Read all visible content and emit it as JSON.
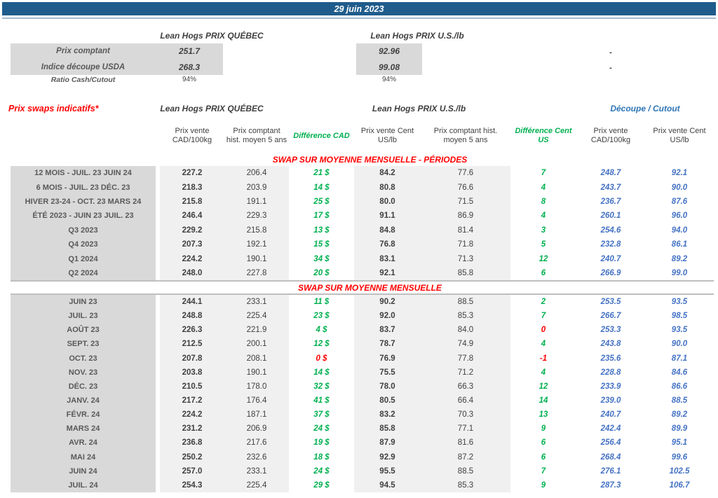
{
  "title_bar": {
    "date": "29 juin 2023"
  },
  "summary": {
    "quebec_header": "Lean Hogs PRIX QUÉBEC",
    "us_header": "Lean Hogs PRIX U.S./lb",
    "rows": [
      {
        "label": "Prix comptant",
        "quebec": "251.7",
        "us": "92.96",
        "right": "-"
      },
      {
        "label": "Indice découpe USDA",
        "quebec": "268.3",
        "us": "99.08",
        "right": "-"
      }
    ],
    "ratio": {
      "label": "Ratio Cash/Cutout",
      "quebec": "94%",
      "us": "94%"
    }
  },
  "swaps": {
    "title": "Prix swaps indicatifs*",
    "quebec_header": "Lean Hogs PRIX QUÉBEC",
    "us_header": "Lean Hogs PRIX U.S./lb",
    "cutout_header": "Découpe / Cutout"
  },
  "swap_table": {
    "columns": [
      "Prix vente CAD/100kg",
      "Prix comptant hist. moyen 5 ans",
      "Différence CAD",
      "Prix vente Cent US/lb",
      "Prix comptant hist. moyen 5 ans",
      "Différence Cent US",
      "Prix vente CAD/100kg",
      "Prix vente Cent US/lb"
    ],
    "sections": [
      {
        "title": "SWAP SUR MOYENNE MENSUELLE - PÉRIODES",
        "rows": [
          {
            "cells": [
              "12 MOIS - JUIL. 23 JUIN 24",
              "227.2",
              "206.4",
              "21 $",
              "84.2",
              "77.6",
              "7",
              "248.7",
              "92.1"
            ],
            "red": []
          },
          {
            "cells": [
              "6 MOIS - JUIL. 23 DÉC. 23",
              "218.3",
              "203.9",
              "14 $",
              "80.8",
              "76.6",
              "4",
              "243.7",
              "90.0"
            ],
            "red": []
          },
          {
            "cells": [
              "HIVER 23-24 -  OCT. 23 MARS 24",
              "215.8",
              "191.1",
              "25 $",
              "80.0",
              "71.5",
              "8",
              "236.7",
              "87.6"
            ],
            "red": []
          },
          {
            "cells": [
              "ÉTÉ 2023 - JUIN 23 JUIL. 23",
              "246.4",
              "229.3",
              "17 $",
              "91.1",
              "86.9",
              "4",
              "260.1",
              "96.0"
            ],
            "red": []
          },
          {
            "cells": [
              "Q3 2023",
              "229.2",
              "215.8",
              "13 $",
              "84.8",
              "81.4",
              "3",
              "254.6",
              "94.0"
            ],
            "red": []
          },
          {
            "cells": [
              "Q4 2023",
              "207.3",
              "192.1",
              "15 $",
              "76.8",
              "71.8",
              "5",
              "232.8",
              "86.1"
            ],
            "red": []
          },
          {
            "cells": [
              "Q1 2024",
              "224.2",
              "190.1",
              "34 $",
              "83.1",
              "71.3",
              "12",
              "240.7",
              "89.2"
            ],
            "red": []
          },
          {
            "cells": [
              "Q2 2024",
              "248.0",
              "227.8",
              "20 $",
              "92.1",
              "85.8",
              "6",
              "266.9",
              "99.0"
            ],
            "red": []
          }
        ]
      },
      {
        "title": "SWAP SUR MOYENNE MENSUELLE",
        "rows": [
          {
            "cells": [
              "JUIN 23",
              "244.1",
              "233.1",
              "11 $",
              "90.2",
              "88.5",
              "2",
              "253.5",
              "93.5"
            ],
            "red": []
          },
          {
            "cells": [
              "JUIL. 23",
              "248.8",
              "225.4",
              "23 $",
              "92.0",
              "85.3",
              "7",
              "266.7",
              "98.5"
            ],
            "red": []
          },
          {
            "cells": [
              "AOÛT 23",
              "226.3",
              "221.9",
              "4 $",
              "83.7",
              "84.0",
              "0",
              "253.3",
              "93.5"
            ],
            "red": [
              6
            ]
          },
          {
            "cells": [
              "SEPT. 23",
              "212.5",
              "200.1",
              "12 $",
              "78.7",
              "74.9",
              "4",
              "243.8",
              "90.0"
            ],
            "red": []
          },
          {
            "cells": [
              "OCT. 23",
              "207.8",
              "208.1",
              "0 $",
              "76.9",
              "77.8",
              "-1",
              "235.6",
              "87.1"
            ],
            "red": [
              3,
              6
            ]
          },
          {
            "cells": [
              "NOV. 23",
              "203.8",
              "190.1",
              "14 $",
              "75.5",
              "71.2",
              "4",
              "228.8",
              "84.6"
            ],
            "red": []
          },
          {
            "cells": [
              "DÉC. 23",
              "210.5",
              "178.0",
              "32 $",
              "78.0",
              "66.3",
              "12",
              "233.9",
              "86.6"
            ],
            "red": []
          },
          {
            "cells": [
              "JANV. 24",
              "217.2",
              "176.4",
              "41 $",
              "80.5",
              "66.4",
              "14",
              "239.0",
              "88.5"
            ],
            "red": []
          },
          {
            "cells": [
              "FÉVR. 24",
              "224.2",
              "187.1",
              "37 $",
              "83.2",
              "70.3",
              "13",
              "240.7",
              "89.2"
            ],
            "red": []
          },
          {
            "cells": [
              "MARS 24",
              "231.2",
              "206.9",
              "24 $",
              "85.8",
              "77.1",
              "9",
              "242.4",
              "89.9"
            ],
            "red": []
          },
          {
            "cells": [
              "AVR. 24",
              "236.8",
              "217.6",
              "19 $",
              "87.9",
              "81.6",
              "6",
              "256.4",
              "95.1"
            ],
            "red": []
          },
          {
            "cells": [
              "MAI 24",
              "250.2",
              "232.6",
              "18 $",
              "92.9",
              "87.2",
              "6",
              "268.4",
              "99.6"
            ],
            "red": []
          },
          {
            "cells": [
              "JUIN 24",
              "257.0",
              "233.1",
              "24 $",
              "95.5",
              "88.5",
              "7",
              "276.1",
              "102.5"
            ],
            "red": []
          },
          {
            "cells": [
              "JUIL. 24",
              "254.3",
              "225.4",
              "29 $",
              "94.5",
              "85.3",
              "9",
              "287.3",
              "106.7"
            ],
            "red": []
          }
        ]
      }
    ]
  },
  "colors": {
    "header_bar": "#1F5C8C",
    "positive_diff": "#00B050",
    "negative_diff": "#FF0000",
    "cutout_values": "#4472C4",
    "cutout_header": "#2E75B6",
    "section_title": "#FF0000",
    "label_bg": "#D9D9D9",
    "value_bg": "#F0F0F0"
  }
}
